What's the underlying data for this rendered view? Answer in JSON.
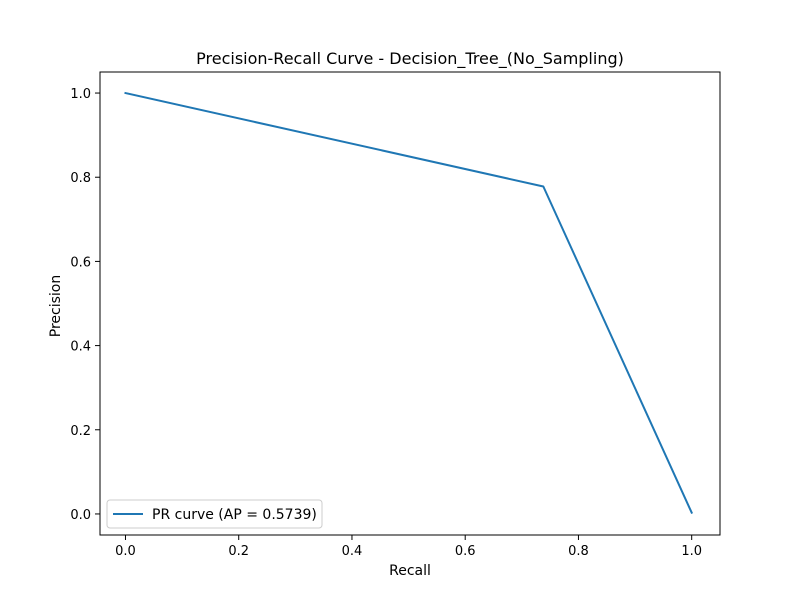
{
  "chart_data": {
    "type": "line",
    "title": "Precision-Recall Curve - Decision_Tree_(No_Sampling)",
    "xlabel": "Recall",
    "ylabel": "Precision",
    "xlim": [
      -0.045,
      1.05
    ],
    "ylim": [
      -0.05,
      1.05
    ],
    "x_ticks": [
      0.0,
      0.2,
      0.4,
      0.6,
      0.8,
      1.0
    ],
    "y_ticks": [
      0.0,
      0.2,
      0.4,
      0.6,
      0.8,
      1.0
    ],
    "x_tick_labels": [
      "0.0",
      "0.2",
      "0.4",
      "0.6",
      "0.8",
      "1.0"
    ],
    "y_tick_labels": [
      "0.0",
      "0.2",
      "0.4",
      "0.6",
      "0.8",
      "1.0"
    ],
    "grid": false,
    "legend_position": "lower-left",
    "series": [
      {
        "name": "PR curve (AP = 0.5739)",
        "color": "#1f77b4",
        "x": [
          0.0,
          0.738,
          1.0
        ],
        "y": [
          1.0,
          0.778,
          0.003
        ]
      }
    ]
  }
}
